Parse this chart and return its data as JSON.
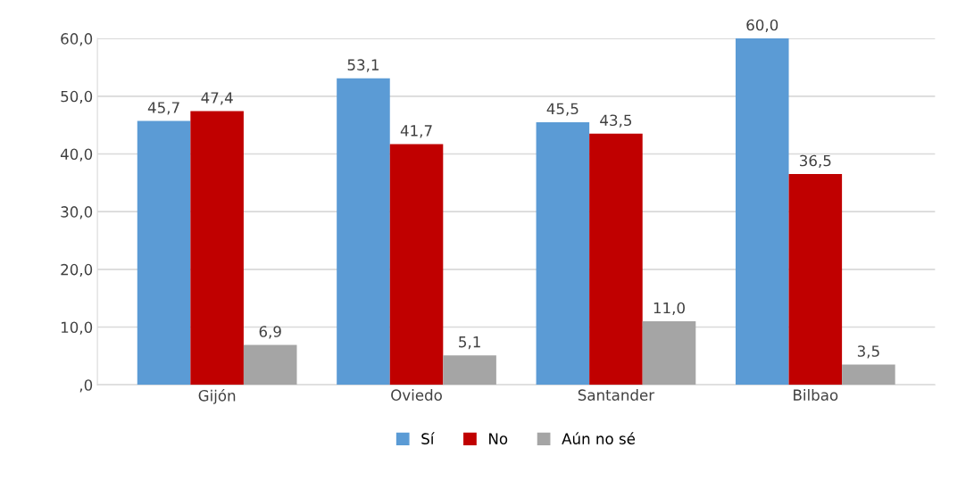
{
  "chart_data": {
    "type": "bar",
    "categories": [
      "Gijón",
      "Oviedo",
      "Santander",
      "Bilbao"
    ],
    "series": [
      {
        "name": "Sí",
        "color": "#5b9bd5",
        "values": [
          45.7,
          53.1,
          45.5,
          60.0
        ],
        "value_labels": [
          "45,7",
          "53,1",
          "45,5",
          "60,0"
        ]
      },
      {
        "name": "No",
        "color": "#c00000",
        "values": [
          47.4,
          41.7,
          43.5,
          36.5
        ],
        "value_labels": [
          "47,4",
          "41,7",
          "43,5",
          "36,5"
        ]
      },
      {
        "name": "Aún no sé",
        "color": "#a5a5a5",
        "values": [
          6.9,
          5.1,
          11.0,
          3.5
        ],
        "value_labels": [
          "6,9",
          "5,1",
          "11,0",
          "3,5"
        ]
      }
    ],
    "ylim": [
      0,
      60
    ],
    "yticks": [
      {
        "value": 0,
        "label": ",0"
      },
      {
        "value": 10,
        "label": "10,0"
      },
      {
        "value": 20,
        "label": "20,0"
      },
      {
        "value": 30,
        "label": "30,0"
      },
      {
        "value": 40,
        "label": "40,0"
      },
      {
        "value": 50,
        "label": "50,0"
      },
      {
        "value": 60,
        "label": "60,0"
      }
    ],
    "grid": "y",
    "legend": "bottom"
  }
}
